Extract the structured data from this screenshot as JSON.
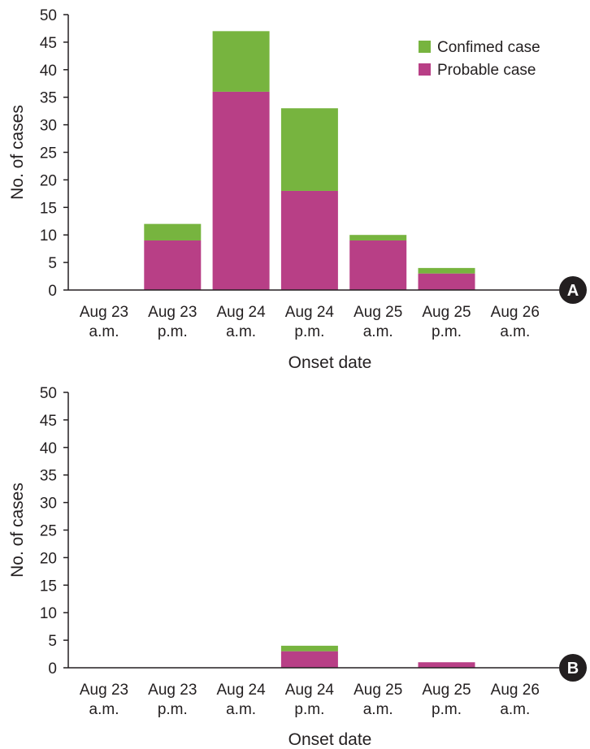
{
  "colors": {
    "confirmed": "#77b43f",
    "probable": "#b83f86",
    "axis": "#231f20",
    "badge": "#231f20"
  },
  "legend": {
    "confirmed_label": "Confimed case",
    "probable_label": "Probable case"
  },
  "chart_data": [
    {
      "type": "bar",
      "stacked": true,
      "panel": "A",
      "title": "",
      "xlabel": "Onset date",
      "ylabel": "No. of cases",
      "ylim": [
        0,
        50
      ],
      "yticks": [
        0,
        5,
        10,
        15,
        20,
        25,
        30,
        35,
        40,
        45,
        50
      ],
      "categories": [
        [
          "Aug 23",
          "a.m."
        ],
        [
          "Aug 23",
          "p.m."
        ],
        [
          "Aug 24",
          "a.m."
        ],
        [
          "Aug 24",
          "p.m."
        ],
        [
          "Aug 25",
          "a.m."
        ],
        [
          "Aug 25",
          "p.m."
        ],
        [
          "Aug 26",
          "a.m."
        ]
      ],
      "series": [
        {
          "name": "Probable case",
          "values": [
            0,
            9,
            36,
            18,
            9,
            3,
            0
          ]
        },
        {
          "name": "Confimed case",
          "values": [
            0,
            3,
            11,
            15,
            1,
            1,
            0
          ]
        }
      ],
      "legend_position": "top-right"
    },
    {
      "type": "bar",
      "stacked": true,
      "panel": "B",
      "title": "",
      "xlabel": "Onset date",
      "ylabel": "No. of cases",
      "ylim": [
        0,
        50
      ],
      "yticks": [
        0,
        5,
        10,
        15,
        20,
        25,
        30,
        35,
        40,
        45,
        50
      ],
      "categories": [
        [
          "Aug 23",
          "a.m."
        ],
        [
          "Aug 23",
          "p.m."
        ],
        [
          "Aug 24",
          "a.m."
        ],
        [
          "Aug 24",
          "p.m."
        ],
        [
          "Aug 25",
          "a.m."
        ],
        [
          "Aug 25",
          "p.m."
        ],
        [
          "Aug 26",
          "a.m."
        ]
      ],
      "series": [
        {
          "name": "Probable case",
          "values": [
            0,
            0,
            0,
            3,
            0,
            1,
            0
          ]
        },
        {
          "name": "Confimed case",
          "values": [
            0,
            0,
            0,
            1,
            0,
            0,
            0
          ]
        }
      ]
    }
  ]
}
